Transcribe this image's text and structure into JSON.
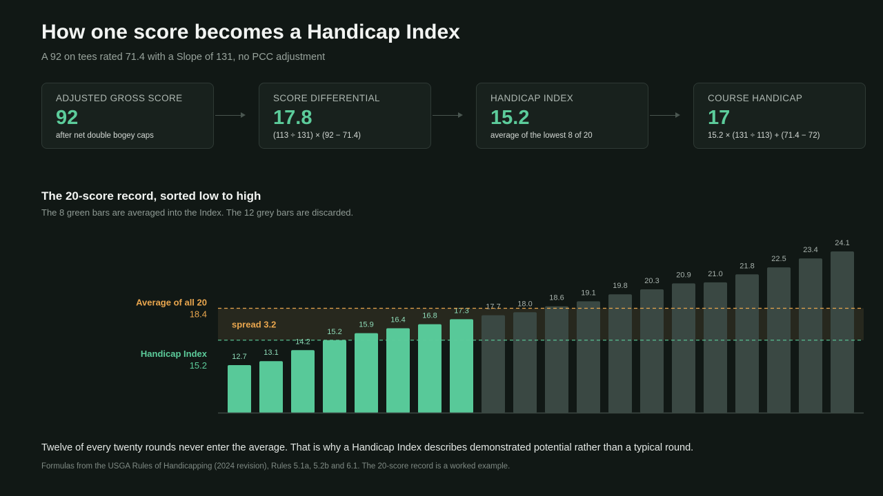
{
  "header": {
    "title": "How one score becomes a Handicap Index",
    "subtitle": "A 92 on tees rated 71.4 with a Slope of 131, no PCC adjustment"
  },
  "cards": [
    {
      "label": "ADJUSTED GROSS SCORE",
      "value": "92",
      "note": "after net double bogey caps"
    },
    {
      "label": "SCORE DIFFERENTIAL",
      "value": "17.8",
      "note": "(113 ÷ 131) × (92 − 71.4)"
    },
    {
      "label": "HANDICAP INDEX",
      "value": "15.2",
      "note": "average of the lowest 8 of 20"
    },
    {
      "label": "COURSE HANDICAP",
      "value": "17",
      "note": "15.2 × (131 ÷ 113) + (71.4 − 72)"
    }
  ],
  "section": {
    "title": "The 20-score record, sorted low to high",
    "subtitle": "The 8 green bars are averaged into the Index. The 12 grey bars are discarded."
  },
  "chart_data": {
    "type": "bar",
    "values": [
      12.7,
      13.1,
      14.2,
      15.2,
      15.9,
      16.4,
      16.8,
      17.3,
      17.7,
      18.0,
      18.6,
      19.1,
      19.8,
      20.3,
      20.9,
      21.0,
      21.8,
      22.5,
      23.4,
      24.1
    ],
    "labels": [
      "12.7",
      "13.1",
      "14.2",
      "15.2",
      "15.9",
      "16.4",
      "16.8",
      "17.3",
      "17.7",
      "18.0",
      "18.6",
      "19.1",
      "19.8",
      "20.3",
      "20.9",
      "21.0",
      "21.8",
      "22.5",
      "23.4",
      "24.1"
    ],
    "counted": 8,
    "ylim": [
      8,
      25
    ],
    "reference_lines": [
      {
        "label": "Average of all 20",
        "value_label": "18.4",
        "value": 18.4,
        "color": "#e9a64e"
      },
      {
        "label": "Handicap Index",
        "value_label": "15.2",
        "value": 15.2,
        "color": "#5ccc9b"
      }
    ],
    "band_label": "spread 3.2",
    "colors": {
      "counted": "#58c999",
      "discarded": "#3a4843",
      "counted_label": "#8fdcb9",
      "discarded_label": "#a7b1ac",
      "band": "#2a2a1f"
    }
  },
  "footer": {
    "note": "Twelve of every twenty rounds never enter the average. That is why a Handicap Index describes demonstrated potential rather than a typical round.",
    "source": "Formulas from the USGA Rules of Handicapping (2024 revision), Rules 5.1a, 5.2b and 6.1. The 20-score record is a worked example."
  }
}
